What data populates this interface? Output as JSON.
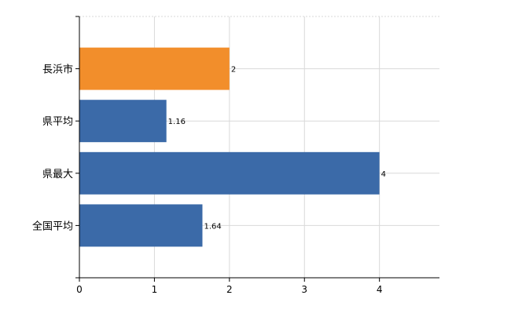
{
  "chart_data": {
    "type": "bar",
    "orientation": "horizontal",
    "categories": [
      "長浜市",
      "県平均",
      "県最大",
      "全国平均"
    ],
    "values": [
      2,
      1.16,
      4,
      1.64
    ],
    "value_labels": [
      "2",
      "1.16",
      "4",
      "1.64"
    ],
    "bar_colors": [
      "#f28e2b",
      "#3b6aa8",
      "#3b6aa8",
      "#3b6aa8"
    ],
    "title": "",
    "xlabel": "",
    "ylabel": "",
    "xlim": [
      0,
      4.8
    ],
    "xticks": [
      0,
      1,
      2,
      3,
      4
    ],
    "xtick_labels": [
      "0",
      "1",
      "2",
      "3",
      "4"
    ],
    "grid": true,
    "legend": false
  }
}
